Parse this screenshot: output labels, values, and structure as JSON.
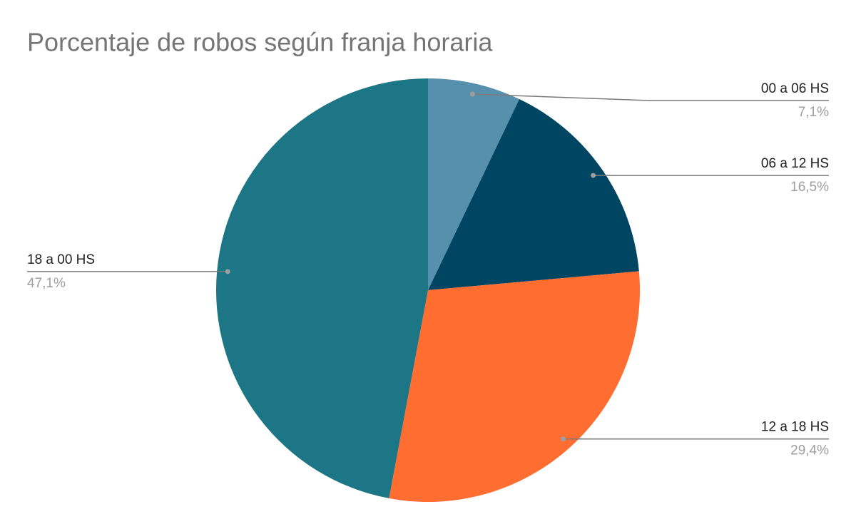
{
  "chart_data": {
    "type": "pie",
    "title": "Porcentaje de robos según franja horaria",
    "categories": [
      "00 a 06 HS",
      "06 a 12 HS",
      "12 a 18 HS",
      "18 a 00 HS"
    ],
    "values": [
      7.1,
      16.5,
      29.4,
      47.1
    ],
    "value_labels": [
      "7,1%",
      "16,5%",
      "29,4%",
      "47,1%"
    ],
    "colors": [
      "#5790ad",
      "#004561",
      "#ff6d31",
      "#1c7685"
    ]
  }
}
